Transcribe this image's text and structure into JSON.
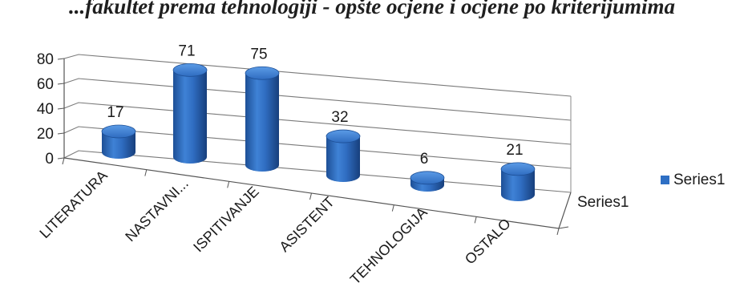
{
  "chart_data": {
    "type": "bar",
    "style": "3d-cylinder",
    "title": "...fakultet prema tehnologiji - opšte ocjene i ocjene po kriterijumima",
    "categories": [
      "LITERATURA",
      "NASTAVNI...",
      "ISPITIVANJE",
      "ASISTENT",
      "TEHNOLOGIJA",
      "OSTALO"
    ],
    "series": [
      {
        "name": "Series1",
        "values": [
          17,
          71,
          75,
          32,
          6,
          21
        ],
        "color": "#2e6fc4"
      }
    ],
    "data_labels": [
      "17",
      "71",
      "75",
      "32",
      "6",
      "21"
    ],
    "y_ticks": [
      "0",
      "20",
      "40",
      "60",
      "80"
    ],
    "ylim": [
      0,
      80
    ],
    "depth_axis_label": "Series1",
    "legend": {
      "position": "right",
      "entries": [
        "Series1"
      ]
    },
    "grid": true
  }
}
